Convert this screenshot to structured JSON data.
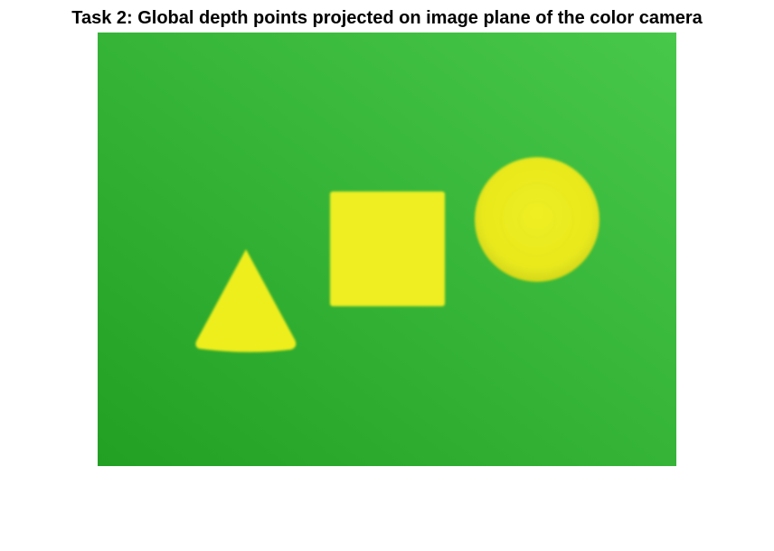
{
  "figure": {
    "title": "Task 2: Global depth points projected on image plane of the color camera"
  },
  "colors": {
    "background_light": "#48c84a",
    "background_dark": "#22a024",
    "shape_fill": "#f0f020",
    "shape_edge": "#dede18"
  },
  "shapes": [
    {
      "kind": "cone",
      "name": "cone-shape"
    },
    {
      "kind": "cube",
      "name": "cube-shape"
    },
    {
      "kind": "sphere",
      "name": "sphere-shape"
    }
  ]
}
